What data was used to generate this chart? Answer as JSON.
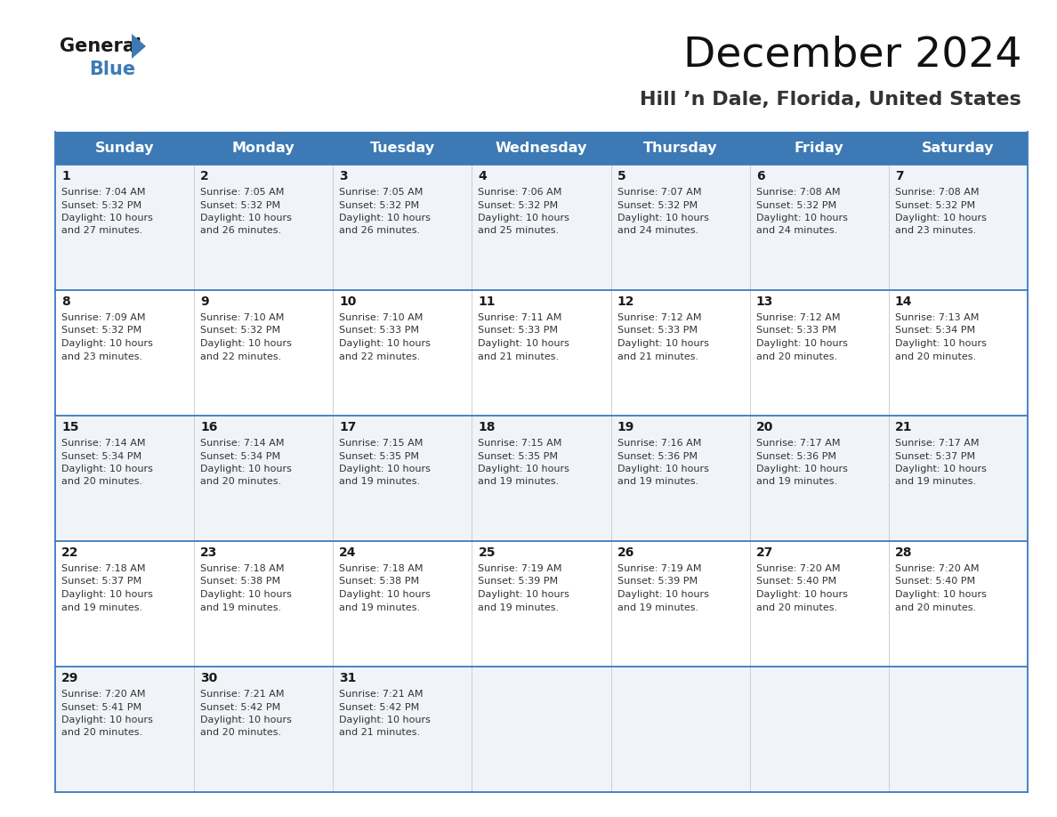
{
  "title": "December 2024",
  "subtitle": "Hill ’n Dale, Florida, United States",
  "header_bg_color": "#3d7ab5",
  "header_text_color": "#ffffff",
  "cell_bg_row0": "#f0f4f8",
  "cell_bg_row1": "#ffffff",
  "grid_line_color": "#3a7abf",
  "text_color": "#222222",
  "days_of_week": [
    "Sunday",
    "Monday",
    "Tuesday",
    "Wednesday",
    "Thursday",
    "Friday",
    "Saturday"
  ],
  "calendar_data": [
    [
      {
        "day": 1,
        "sunrise": "7:04 AM",
        "sunset": "5:32 PM",
        "daylight_hrs": "10 hours",
        "daylight_min": "and 27 minutes."
      },
      {
        "day": 2,
        "sunrise": "7:05 AM",
        "sunset": "5:32 PM",
        "daylight_hrs": "10 hours",
        "daylight_min": "and 26 minutes."
      },
      {
        "day": 3,
        "sunrise": "7:05 AM",
        "sunset": "5:32 PM",
        "daylight_hrs": "10 hours",
        "daylight_min": "and 26 minutes."
      },
      {
        "day": 4,
        "sunrise": "7:06 AM",
        "sunset": "5:32 PM",
        "daylight_hrs": "10 hours",
        "daylight_min": "and 25 minutes."
      },
      {
        "day": 5,
        "sunrise": "7:07 AM",
        "sunset": "5:32 PM",
        "daylight_hrs": "10 hours",
        "daylight_min": "and 24 minutes."
      },
      {
        "day": 6,
        "sunrise": "7:08 AM",
        "sunset": "5:32 PM",
        "daylight_hrs": "10 hours",
        "daylight_min": "and 24 minutes."
      },
      {
        "day": 7,
        "sunrise": "7:08 AM",
        "sunset": "5:32 PM",
        "daylight_hrs": "10 hours",
        "daylight_min": "and 23 minutes."
      }
    ],
    [
      {
        "day": 8,
        "sunrise": "7:09 AM",
        "sunset": "5:32 PM",
        "daylight_hrs": "10 hours",
        "daylight_min": "and 23 minutes."
      },
      {
        "day": 9,
        "sunrise": "7:10 AM",
        "sunset": "5:32 PM",
        "daylight_hrs": "10 hours",
        "daylight_min": "and 22 minutes."
      },
      {
        "day": 10,
        "sunrise": "7:10 AM",
        "sunset": "5:33 PM",
        "daylight_hrs": "10 hours",
        "daylight_min": "and 22 minutes."
      },
      {
        "day": 11,
        "sunrise": "7:11 AM",
        "sunset": "5:33 PM",
        "daylight_hrs": "10 hours",
        "daylight_min": "and 21 minutes."
      },
      {
        "day": 12,
        "sunrise": "7:12 AM",
        "sunset": "5:33 PM",
        "daylight_hrs": "10 hours",
        "daylight_min": "and 21 minutes."
      },
      {
        "day": 13,
        "sunrise": "7:12 AM",
        "sunset": "5:33 PM",
        "daylight_hrs": "10 hours",
        "daylight_min": "and 20 minutes."
      },
      {
        "day": 14,
        "sunrise": "7:13 AM",
        "sunset": "5:34 PM",
        "daylight_hrs": "10 hours",
        "daylight_min": "and 20 minutes."
      }
    ],
    [
      {
        "day": 15,
        "sunrise": "7:14 AM",
        "sunset": "5:34 PM",
        "daylight_hrs": "10 hours",
        "daylight_min": "and 20 minutes."
      },
      {
        "day": 16,
        "sunrise": "7:14 AM",
        "sunset": "5:34 PM",
        "daylight_hrs": "10 hours",
        "daylight_min": "and 20 minutes."
      },
      {
        "day": 17,
        "sunrise": "7:15 AM",
        "sunset": "5:35 PM",
        "daylight_hrs": "10 hours",
        "daylight_min": "and 19 minutes."
      },
      {
        "day": 18,
        "sunrise": "7:15 AM",
        "sunset": "5:35 PM",
        "daylight_hrs": "10 hours",
        "daylight_min": "and 19 minutes."
      },
      {
        "day": 19,
        "sunrise": "7:16 AM",
        "sunset": "5:36 PM",
        "daylight_hrs": "10 hours",
        "daylight_min": "and 19 minutes."
      },
      {
        "day": 20,
        "sunrise": "7:17 AM",
        "sunset": "5:36 PM",
        "daylight_hrs": "10 hours",
        "daylight_min": "and 19 minutes."
      },
      {
        "day": 21,
        "sunrise": "7:17 AM",
        "sunset": "5:37 PM",
        "daylight_hrs": "10 hours",
        "daylight_min": "and 19 minutes."
      }
    ],
    [
      {
        "day": 22,
        "sunrise": "7:18 AM",
        "sunset": "5:37 PM",
        "daylight_hrs": "10 hours",
        "daylight_min": "and 19 minutes."
      },
      {
        "day": 23,
        "sunrise": "7:18 AM",
        "sunset": "5:38 PM",
        "daylight_hrs": "10 hours",
        "daylight_min": "and 19 minutes."
      },
      {
        "day": 24,
        "sunrise": "7:18 AM",
        "sunset": "5:38 PM",
        "daylight_hrs": "10 hours",
        "daylight_min": "and 19 minutes."
      },
      {
        "day": 25,
        "sunrise": "7:19 AM",
        "sunset": "5:39 PM",
        "daylight_hrs": "10 hours",
        "daylight_min": "and 19 minutes."
      },
      {
        "day": 26,
        "sunrise": "7:19 AM",
        "sunset": "5:39 PM",
        "daylight_hrs": "10 hours",
        "daylight_min": "and 19 minutes."
      },
      {
        "day": 27,
        "sunrise": "7:20 AM",
        "sunset": "5:40 PM",
        "daylight_hrs": "10 hours",
        "daylight_min": "and 20 minutes."
      },
      {
        "day": 28,
        "sunrise": "7:20 AM",
        "sunset": "5:40 PM",
        "daylight_hrs": "10 hours",
        "daylight_min": "and 20 minutes."
      }
    ],
    [
      {
        "day": 29,
        "sunrise": "7:20 AM",
        "sunset": "5:41 PM",
        "daylight_hrs": "10 hours",
        "daylight_min": "and 20 minutes."
      },
      {
        "day": 30,
        "sunrise": "7:21 AM",
        "sunset": "5:42 PM",
        "daylight_hrs": "10 hours",
        "daylight_min": "and 20 minutes."
      },
      {
        "day": 31,
        "sunrise": "7:21 AM",
        "sunset": "5:42 PM",
        "daylight_hrs": "10 hours",
        "daylight_min": "and 21 minutes."
      },
      null,
      null,
      null,
      null
    ]
  ]
}
